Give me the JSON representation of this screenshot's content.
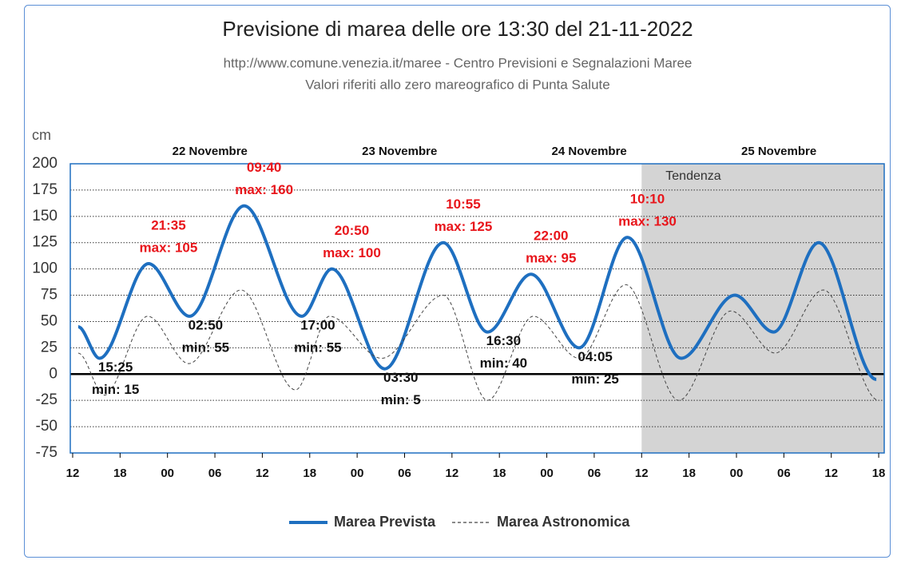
{
  "chart_data": {
    "type": "line",
    "title": "Previsione di marea delle ore 13:30 del 21-11-2022",
    "subtitle": [
      "http://www.comune.venezia.it/maree - Centro Previsioni e Segnalazioni Maree",
      "Valori riferiti allo zero mareografico di Punta Salute"
    ],
    "y_label": "cm",
    "day_labels": [
      "22 Novembre",
      "23 Novembre",
      "24 Novembre",
      "25 Novembre"
    ],
    "tendenza": {
      "label": "Tendenza",
      "start": 84
    },
    "xlim": [
      11.7,
      114.7
    ],
    "xticks": [
      {
        "value": 12,
        "label": "12"
      },
      {
        "value": 18,
        "label": "18"
      },
      {
        "value": 24,
        "label": "00"
      },
      {
        "value": 30,
        "label": "06"
      },
      {
        "value": 36,
        "label": "12"
      },
      {
        "value": 42,
        "label": "18"
      },
      {
        "value": 48,
        "label": "00"
      },
      {
        "value": 54,
        "label": "06"
      },
      {
        "value": 60,
        "label": "12"
      },
      {
        "value": 66,
        "label": "18"
      },
      {
        "value": 72,
        "label": "00"
      },
      {
        "value": 78,
        "label": "06"
      },
      {
        "value": 84,
        "label": "12"
      },
      {
        "value": 90,
        "label": "18"
      },
      {
        "value": 96,
        "label": "00"
      },
      {
        "value": 102,
        "label": "06"
      },
      {
        "value": 108,
        "label": "12"
      },
      {
        "value": 114,
        "label": "18"
      }
    ],
    "ylim": [
      -75,
      200
    ],
    "yticks": [
      200,
      175,
      150,
      125,
      100,
      75,
      50,
      25,
      0,
      -25,
      -50,
      -75
    ],
    "grid": true,
    "series": [
      {
        "name": "Marea Prevista",
        "color": "#1e6fc0",
        "style": "solid",
        "x": [
          12.7,
          15.4,
          21.6,
          26.8,
          33.7,
          41,
          44.8,
          51.5,
          58.9,
          64.5,
          70,
          76.1,
          82.2,
          89,
          95.8,
          100.7,
          106.4,
          113.7
        ],
        "values": [
          45,
          15,
          105,
          55,
          160,
          55,
          100,
          5,
          125,
          40,
          95,
          25,
          130,
          15,
          75,
          40,
          125,
          -5
        ]
      },
      {
        "name": "Marea Astronomica",
        "color": "#444444",
        "style": "dashed",
        "x": [
          12.7,
          16,
          21.5,
          26.7,
          33.3,
          40.2,
          44.5,
          51.1,
          58.9,
          64.5,
          70.3,
          76.1,
          82,
          88.7,
          95.3,
          100.9,
          107,
          114
        ],
        "values": [
          20,
          -20,
          55,
          10,
          80,
          -15,
          55,
          15,
          75,
          -25,
          55,
          15,
          85,
          -25,
          60,
          20,
          80,
          -25
        ]
      }
    ],
    "extremes": [
      {
        "time": "15:25",
        "label": "min: 15",
        "color": "#111111"
      },
      {
        "time": "21:35",
        "label": "max: 105",
        "color": "#e8151b"
      },
      {
        "time": "02:50",
        "label": "min: 55",
        "color": "#111111"
      },
      {
        "time": "09:40",
        "label": "max: 160",
        "color": "#e8151b"
      },
      {
        "time": "17:00",
        "label": "min: 55",
        "color": "#111111"
      },
      {
        "time": "20:50",
        "label": "max: 100",
        "color": "#e8151b"
      },
      {
        "time": "03:30",
        "label": "min: 5",
        "color": "#111111"
      },
      {
        "time": "10:55",
        "label": "max: 125",
        "color": "#e8151b"
      },
      {
        "time": "16:30",
        "label": "min: 40",
        "color": "#111111"
      },
      {
        "time": "22:00",
        "label": "max: 95",
        "color": "#e8151b"
      },
      {
        "time": "04:05",
        "label": "min: 25",
        "color": "#111111"
      },
      {
        "time": "10:10",
        "label": "max: 130",
        "color": "#e8151b"
      }
    ]
  }
}
